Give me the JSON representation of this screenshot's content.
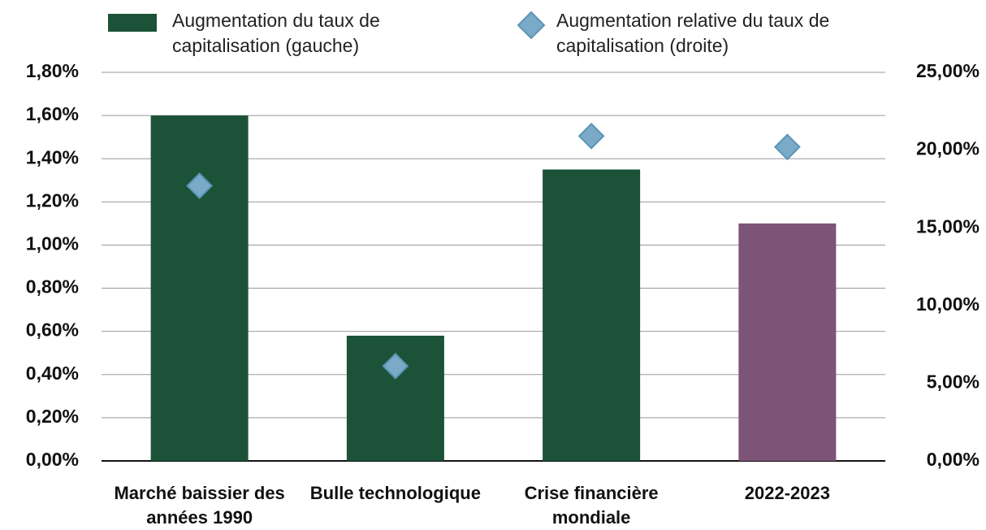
{
  "chart_data": {
    "type": "bar",
    "categories": [
      "Marché baissier des années 1990",
      "Bulle technologique",
      "Crise financière mondiale",
      "2022-2023"
    ],
    "series": [
      {
        "name": "Augmentation du taux de capitalisation (gauche)",
        "type": "bar",
        "color": "#1b5238",
        "colors": [
          "#1b5238",
          "#1b5238",
          "#1b5238",
          "#7d5377"
        ],
        "values": [
          1.6,
          0.58,
          1.35,
          1.1
        ]
      },
      {
        "name": "Augmentation relative du taux de capitalisation (droite)",
        "type": "scatter",
        "axis": "y2",
        "color": "#7aaac8",
        "values": [
          17.7,
          6.1,
          20.9,
          20.2
        ]
      }
    ],
    "ylim": [
      0,
      1.8
    ],
    "yticks": [
      {
        "value": 0,
        "label": "0,00%"
      },
      {
        "value": 0.2,
        "label": "0,20%"
      },
      {
        "value": 0.4,
        "label": "0,40%"
      },
      {
        "value": 0.6,
        "label": "0,60%"
      },
      {
        "value": 0.8,
        "label": "0,80%"
      },
      {
        "value": 1.0,
        "label": "1,00%"
      },
      {
        "value": 1.2,
        "label": "1,20%"
      },
      {
        "value": 1.4,
        "label": "1,40%"
      },
      {
        "value": 1.6,
        "label": "1,60%"
      },
      {
        "value": 1.8,
        "label": "1,80%"
      }
    ],
    "y2lim": [
      0,
      25
    ],
    "y2ticks": [
      {
        "value": 0,
        "label": "0,00%"
      },
      {
        "value": 5,
        "label": "5,00%"
      },
      {
        "value": 10,
        "label": "10,00%"
      },
      {
        "value": 15,
        "label": "15,00%"
      },
      {
        "value": 20,
        "label": "20,00%"
      },
      {
        "value": 25,
        "label": "25,00%"
      }
    ],
    "grid": true,
    "legend": "top"
  }
}
